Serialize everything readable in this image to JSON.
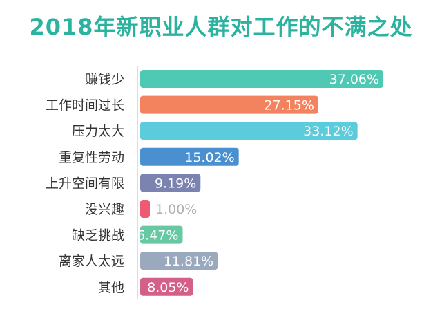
{
  "chart_data": {
    "type": "bar",
    "orientation": "horizontal",
    "title": "2018年新职业人群对工作的不满之处",
    "categories": [
      "赚钱少",
      "工作时间过长",
      "压力太大",
      "重复性劳动",
      "上升空间有限",
      "没兴趣",
      "缺乏挑战",
      "离家人太远",
      "其他"
    ],
    "values": [
      37.06,
      27.15,
      33.12,
      15.02,
      9.19,
      1.0,
      6.47,
      11.81,
      8.05
    ],
    "value_labels": [
      "37.06%",
      "27.15%",
      "33.12%",
      "15.02%",
      "9.19%",
      "1.00%",
      "6.47%",
      "11.81%",
      "8.05%"
    ],
    "unit": "%",
    "xlim": [
      0,
      40
    ],
    "grid": false,
    "legend": "none",
    "colors": [
      "#4fc9b4",
      "#f3835f",
      "#5ccbdc",
      "#4a90d0",
      "#7b84b0",
      "#ee5a72",
      "#66c9a3",
      "#9aa9bd",
      "#d45f88"
    ]
  }
}
